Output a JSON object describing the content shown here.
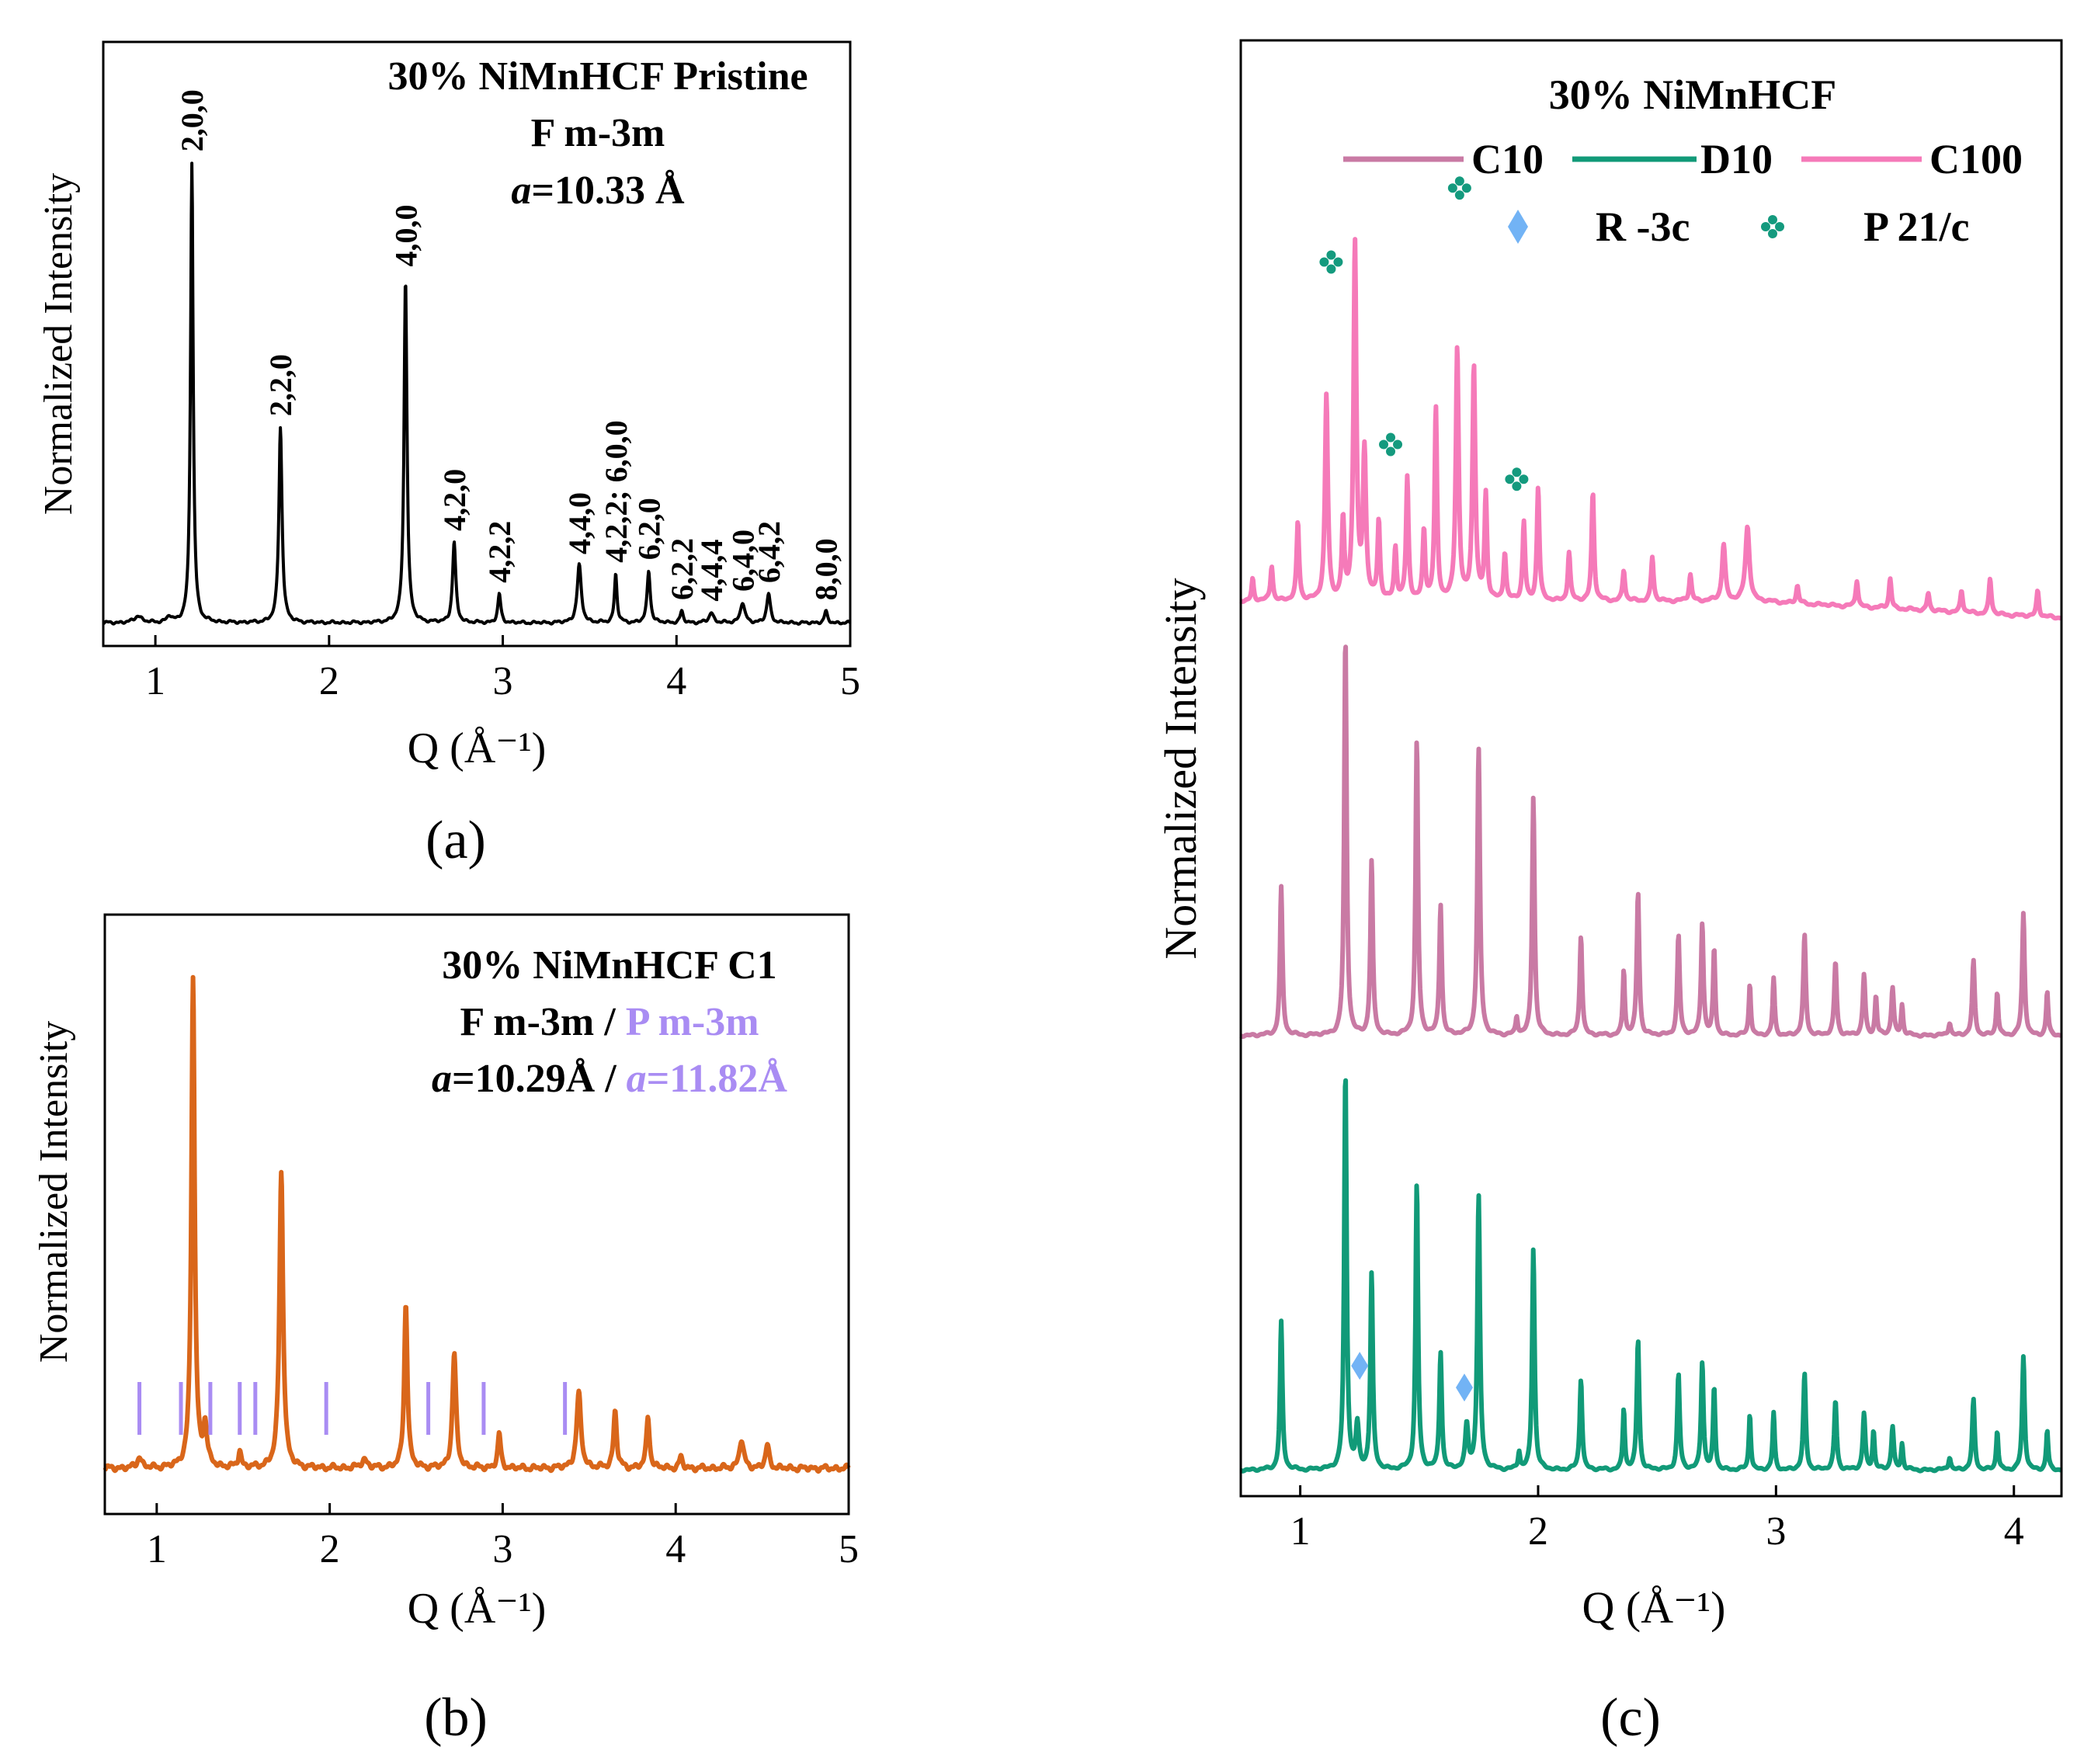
{
  "colors": {
    "black": "#000000",
    "orange": "#d9661a",
    "violet": "#a98cf3",
    "mauve": "#c97aa4",
    "green": "#119a78",
    "pink": "#f57ab9",
    "lightblue": "#72b3f5",
    "teal_marker": "#149a7e"
  },
  "chart_data": [
    {
      "id": "a",
      "type": "line",
      "panel_label": "(a)",
      "xlabel": "Q (Å⁻¹)",
      "ylabel": "Normalized Intensity",
      "xlim": [
        0.7,
        5.0
      ],
      "ylim": [
        0,
        1.05
      ],
      "xticks": [
        1,
        2,
        3,
        4,
        5
      ],
      "title_lines": [
        "30% NiMnHCF Pristine",
        "F m-3m"
      ],
      "lattice_italic": "a",
      "lattice_value": "=10.33 Å",
      "series": [
        {
          "name": "Pristine",
          "color": "#000000",
          "baseline": 0.04,
          "peaks": [
            [
              0.9,
              0.012,
              0.05
            ],
            [
              1.08,
              0.01,
              0.03
            ],
            [
              1.21,
              0.8,
              0.018
            ],
            [
              1.72,
              0.34,
              0.022
            ],
            [
              2.44,
              0.6,
              0.02
            ],
            [
              2.72,
              0.14,
              0.022
            ],
            [
              2.98,
              0.05,
              0.02
            ],
            [
              3.44,
              0.1,
              0.028
            ],
            [
              3.65,
              0.085,
              0.018
            ],
            [
              3.84,
              0.09,
              0.022
            ],
            [
              4.03,
              0.02,
              0.02
            ],
            [
              4.2,
              0.018,
              0.03
            ],
            [
              4.38,
              0.035,
              0.03
            ],
            [
              4.53,
              0.05,
              0.025
            ],
            [
              4.86,
              0.02,
              0.02
            ]
          ]
        }
      ],
      "peak_labels": [
        {
          "label": "2,0,0",
          "x": 1.21
        },
        {
          "label": "2,2,0",
          "x": 1.72
        },
        {
          "label": "4,0,0",
          "x": 2.44
        },
        {
          "label": "4,2,0",
          "x": 2.72
        },
        {
          "label": "4,2,2",
          "x": 2.98
        },
        {
          "label": "4,4,0",
          "x": 3.44
        },
        {
          "label": "4,2,2; 6,0,0",
          "x": 3.65
        },
        {
          "label": "6,2,0",
          "x": 3.84
        },
        {
          "label": "6,2,2",
          "x": 4.03
        },
        {
          "label": "4,4,4",
          "x": 4.2
        },
        {
          "label": "6,4,0",
          "x": 4.38
        },
        {
          "label": "6,4,2",
          "x": 4.53
        },
        {
          "label": "8,0,0",
          "x": 4.86
        }
      ]
    },
    {
      "id": "b",
      "type": "line",
      "panel_label": "(b)",
      "xlabel": "Q (Å⁻¹)",
      "ylabel": "Normalized Intensity",
      "xlim": [
        0.7,
        5.0
      ],
      "ylim": [
        0,
        1.05
      ],
      "xticks": [
        1,
        2,
        3,
        4,
        5
      ],
      "title_line1": "30% NiMnHCF C1",
      "title_line2_a": "F m-3m /",
      "title_line2_b": "P m-3m",
      "lattice_a_italic": "a",
      "lattice_a_value": "=10.29Å /",
      "lattice_b_italic": "a",
      "lattice_b_value": "=11.82Å",
      "series": [
        {
          "name": "C1",
          "color": "#d9661a",
          "baseline": 0.08,
          "peaks": [
            [
              0.9,
              0.02,
              0.03
            ],
            [
              1.21,
              0.86,
              0.022
            ],
            [
              1.28,
              0.07,
              0.025
            ],
            [
              1.48,
              0.03,
              0.02
            ],
            [
              1.72,
              0.52,
              0.025
            ],
            [
              2.2,
              0.015,
              0.04
            ],
            [
              2.44,
              0.29,
              0.022
            ],
            [
              2.72,
              0.2,
              0.025
            ],
            [
              2.98,
              0.06,
              0.02
            ],
            [
              3.44,
              0.13,
              0.03
            ],
            [
              3.65,
              0.1,
              0.022
            ],
            [
              3.84,
              0.09,
              0.022
            ],
            [
              4.03,
              0.02,
              0.02
            ],
            [
              4.38,
              0.05,
              0.03
            ],
            [
              4.53,
              0.04,
              0.025
            ]
          ]
        }
      ],
      "tick_marks_P_m3m": [
        0.9,
        1.14,
        1.31,
        1.48,
        1.57,
        1.98,
        2.57,
        2.89,
        3.36
      ]
    },
    {
      "id": "c",
      "type": "line",
      "panel_label": "(c)",
      "xlabel": "Q (Å⁻¹)",
      "ylabel": "Normalized Intensity",
      "xlim": [
        0.75,
        4.2
      ],
      "ylim": [
        0,
        3.35
      ],
      "xticks": [
        1,
        2,
        3,
        4
      ],
      "title": "30% NiMnHCF",
      "legend": [
        {
          "name": "C10",
          "color": "#c97aa4"
        },
        {
          "name": "D10",
          "color": "#119a78"
        },
        {
          "name": "C100",
          "color": "#f57ab9"
        }
      ],
      "phase_legend": [
        {
          "name": "R -3c",
          "symbol": "diamond",
          "color": "#72b3f5"
        },
        {
          "name": "P 21/c",
          "symbol": "clover",
          "color": "#149a7e"
        }
      ],
      "series": [
        {
          "name": "D10",
          "color": "#119a78",
          "offset": 0.06,
          "peaks": [
            [
              0.92,
              0.34,
              0.012
            ],
            [
              1.19,
              0.92,
              0.012
            ],
            [
              1.24,
              0.1,
              0.015
            ],
            [
              1.3,
              0.45,
              0.012
            ],
            [
              1.49,
              0.66,
              0.012
            ],
            [
              1.59,
              0.27,
              0.012
            ],
            [
              1.7,
              0.1,
              0.015
            ],
            [
              1.75,
              0.63,
              0.013
            ],
            [
              1.92,
              0.04,
              0.01
            ],
            [
              1.98,
              0.51,
              0.012
            ],
            [
              2.18,
              0.21,
              0.012
            ],
            [
              2.36,
              0.14,
              0.01
            ],
            [
              2.42,
              0.3,
              0.012
            ],
            [
              2.59,
              0.22,
              0.012
            ],
            [
              2.69,
              0.25,
              0.012
            ],
            [
              2.74,
              0.19,
              0.01
            ],
            [
              2.89,
              0.13,
              0.01
            ],
            [
              2.99,
              0.13,
              0.01
            ],
            [
              3.12,
              0.22,
              0.012
            ],
            [
              3.25,
              0.16,
              0.012
            ],
            [
              3.37,
              0.13,
              0.012
            ],
            [
              3.41,
              0.09,
              0.01
            ],
            [
              3.49,
              0.1,
              0.012
            ],
            [
              3.53,
              0.06,
              0.01
            ],
            [
              3.73,
              0.03,
              0.012
            ],
            [
              3.83,
              0.16,
              0.012
            ],
            [
              3.93,
              0.09,
              0.01
            ],
            [
              4.04,
              0.26,
              0.012
            ],
            [
              4.14,
              0.09,
              0.01
            ]
          ]
        },
        {
          "name": "C10",
          "color": "#c97aa4",
          "offset": 1.06,
          "peaks": [
            [
              0.92,
              0.34,
              0.012
            ],
            [
              1.19,
              0.92,
              0.012
            ],
            [
              1.3,
              0.4,
              0.012
            ],
            [
              1.49,
              0.68,
              0.012
            ],
            [
              1.59,
              0.3,
              0.012
            ],
            [
              1.75,
              0.66,
              0.013
            ],
            [
              1.91,
              0.04,
              0.01
            ],
            [
              1.98,
              0.55,
              0.012
            ],
            [
              2.18,
              0.23,
              0.012
            ],
            [
              2.36,
              0.15,
              0.01
            ],
            [
              2.42,
              0.33,
              0.012
            ],
            [
              2.59,
              0.23,
              0.012
            ],
            [
              2.69,
              0.26,
              0.012
            ],
            [
              2.74,
              0.2,
              0.01
            ],
            [
              2.89,
              0.12,
              0.01
            ],
            [
              2.99,
              0.13,
              0.01
            ],
            [
              3.12,
              0.23,
              0.012
            ],
            [
              3.25,
              0.17,
              0.012
            ],
            [
              3.37,
              0.14,
              0.012
            ],
            [
              3.42,
              0.09,
              0.01
            ],
            [
              3.49,
              0.11,
              0.012
            ],
            [
              3.53,
              0.07,
              0.01
            ],
            [
              3.73,
              0.03,
              0.012
            ],
            [
              3.83,
              0.17,
              0.012
            ],
            [
              3.93,
              0.1,
              0.01
            ],
            [
              4.04,
              0.28,
              0.012
            ],
            [
              4.14,
              0.1,
              0.01
            ]
          ]
        },
        {
          "name": "C100",
          "color": "#f57ab9",
          "offset": 2.06,
          "peaks": [
            [
              0.8,
              0.05,
              0.01
            ],
            [
              0.88,
              0.08,
              0.012
            ],
            [
              0.99,
              0.18,
              0.012
            ],
            [
              1.11,
              0.47,
              0.014
            ],
            [
              1.18,
              0.18,
              0.012
            ],
            [
              1.23,
              0.82,
              0.014
            ],
            [
              1.27,
              0.34,
              0.015
            ],
            [
              1.33,
              0.18,
              0.012
            ],
            [
              1.4,
              0.12,
              0.012
            ],
            [
              1.45,
              0.28,
              0.012
            ],
            [
              1.52,
              0.16,
              0.012
            ],
            [
              1.57,
              0.44,
              0.012
            ],
            [
              1.66,
              0.58,
              0.014
            ],
            [
              1.73,
              0.54,
              0.014
            ],
            [
              1.78,
              0.24,
              0.012
            ],
            [
              1.86,
              0.11,
              0.012
            ],
            [
              1.94,
              0.18,
              0.012
            ],
            [
              2.0,
              0.26,
              0.012
            ],
            [
              2.13,
              0.11,
              0.012
            ],
            [
              2.23,
              0.25,
              0.012
            ],
            [
              2.36,
              0.07,
              0.012
            ],
            [
              2.48,
              0.1,
              0.012
            ],
            [
              2.64,
              0.06,
              0.012
            ],
            [
              2.78,
              0.13,
              0.016
            ],
            [
              2.88,
              0.17,
              0.02
            ],
            [
              3.09,
              0.04,
              0.012
            ],
            [
              3.34,
              0.06,
              0.012
            ],
            [
              3.48,
              0.07,
              0.012
            ],
            [
              3.64,
              0.04,
              0.012
            ],
            [
              3.78,
              0.05,
              0.012
            ],
            [
              3.9,
              0.08,
              0.012
            ],
            [
              4.1,
              0.06,
              0.012
            ]
          ],
          "descend_after": 2.9
        }
      ],
      "markers": [
        {
          "symbol": "clover",
          "x": 1.13,
          "series": "C100",
          "dy": 0.78
        },
        {
          "symbol": "clover",
          "x": 1.67,
          "series": "C100",
          "dy": 0.95
        },
        {
          "symbol": "clover",
          "x": 1.38,
          "series": "C100",
          "dy": 0.36
        },
        {
          "symbol": "clover",
          "x": 1.91,
          "series": "C100",
          "dy": 0.28
        },
        {
          "symbol": "diamond",
          "x": 1.25,
          "series": "D10",
          "dy": 0.24
        },
        {
          "symbol": "diamond",
          "x": 1.69,
          "series": "D10",
          "dy": 0.19
        }
      ]
    }
  ]
}
